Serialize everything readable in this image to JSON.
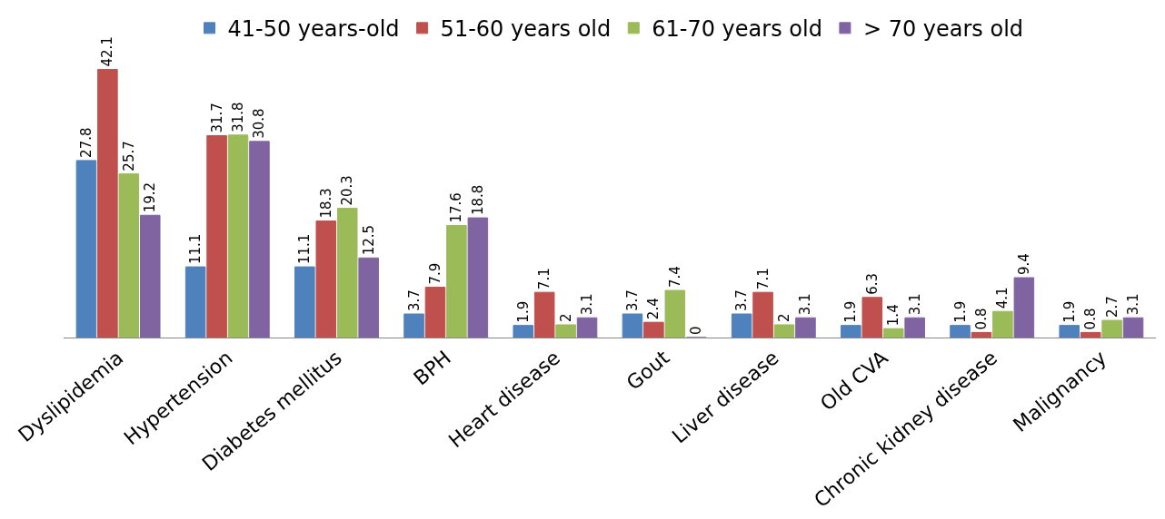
{
  "chart_data": {
    "type": "bar",
    "categories": [
      "Dyslipidemia",
      "Hypertension",
      "Diabetes mellitus",
      "BPH",
      "Heart disease",
      "Gout",
      "Liver disease",
      "Old CVA",
      "Chronic kidney disease",
      "Malignancy"
    ],
    "series": [
      {
        "name": "41-50 years-old",
        "color": "#4f81bd",
        "values": [
          27.8,
          11.1,
          11.1,
          3.7,
          1.9,
          3.7,
          3.7,
          1.9,
          1.9,
          1.9
        ]
      },
      {
        "name": "51-60 years old",
        "color": "#c0504d",
        "values": [
          42.1,
          31.7,
          18.3,
          7.9,
          7.1,
          2.4,
          7.1,
          6.3,
          0.8,
          0.8
        ]
      },
      {
        "name": "61-70 years old",
        "color": "#9bbb59",
        "values": [
          25.7,
          31.8,
          20.3,
          17.6,
          2,
          7.4,
          2,
          1.4,
          4.1,
          2.7
        ]
      },
      {
        "name": "> 70 years old",
        "color": "#8064a2",
        "values": [
          19.2,
          30.8,
          12.5,
          18.8,
          3.1,
          0,
          3.1,
          3.1,
          9.4,
          3.1
        ]
      }
    ],
    "data_labels": true,
    "legend": "top",
    "grid": false
  }
}
